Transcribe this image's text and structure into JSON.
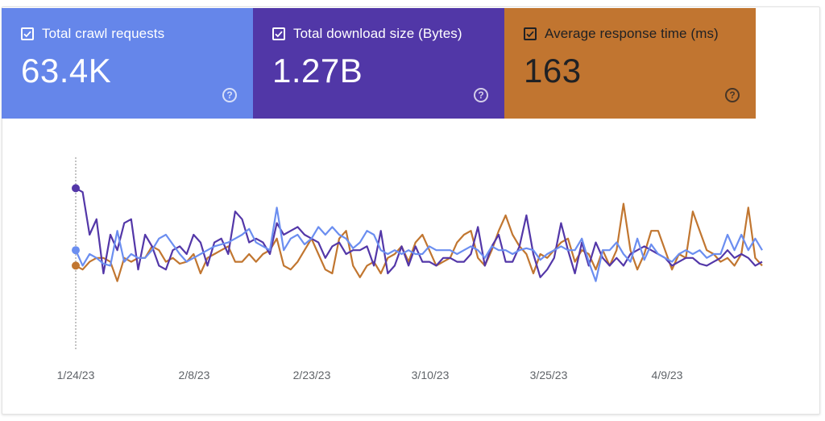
{
  "metrics": [
    {
      "label": "Total crawl requests",
      "value": "63.4K",
      "color": "#6586ea",
      "text_color": "#ffffff",
      "help_icon": "help-circle-icon"
    },
    {
      "label": "Total download size (Bytes)",
      "value": "1.27B",
      "color": "#5137a7",
      "text_color": "#ffffff",
      "help_icon": "help-circle-icon"
    },
    {
      "label": "Average response time (ms)",
      "value": "163",
      "color": "#c17530",
      "text_color": "#202124",
      "help_icon": "help-circle-icon"
    }
  ],
  "chart_data": {
    "type": "line",
    "x_axis": {
      "ticks": [
        "1/24/23",
        "2/8/23",
        "2/23/23",
        "3/10/23",
        "3/25/23",
        "4/9/23"
      ]
    },
    "y_axis": {
      "visible": false,
      "ylim": [
        0,
        100
      ]
    },
    "grid": false,
    "legend": "top (metric cards)",
    "series": [
      {
        "name": "Total crawl requests",
        "color": "#6b8ef0",
        "values": [
          52,
          44,
          50,
          48,
          45,
          44,
          62,
          46,
          50,
          48,
          48,
          52,
          58,
          60,
          55,
          50,
          46,
          48,
          50,
          52,
          54,
          55,
          56,
          58,
          60,
          63,
          56,
          54,
          52,
          74,
          52,
          58,
          60,
          55,
          58,
          64,
          60,
          64,
          60,
          58,
          53,
          56,
          62,
          60,
          52,
          50,
          52,
          50,
          52,
          50,
          50,
          54,
          52,
          52,
          52,
          50,
          52,
          54,
          52,
          48,
          54,
          52,
          52,
          50,
          52,
          53,
          52,
          47,
          50,
          52,
          54,
          52,
          52,
          58,
          46,
          36,
          52,
          52,
          56,
          50,
          46,
          58,
          47,
          55,
          50,
          48,
          46,
          50,
          52,
          50,
          52,
          48,
          50,
          50,
          60,
          52,
          60,
          52,
          58,
          52
        ]
      },
      {
        "name": "Total download size (Bytes)",
        "color": "#5337a8",
        "values": [
          84,
          82,
          60,
          68,
          40,
          60,
          52,
          66,
          68,
          42,
          60,
          54,
          44,
          42,
          52,
          54,
          50,
          60,
          56,
          44,
          56,
          58,
          50,
          72,
          68,
          56,
          58,
          56,
          50,
          66,
          60,
          62,
          64,
          60,
          58,
          56,
          48,
          54,
          56,
          50,
          52,
          52,
          54,
          44,
          62,
          40,
          44,
          54,
          44,
          54,
          46,
          46,
          44,
          48,
          48,
          46,
          46,
          50,
          64,
          44,
          54,
          60,
          46,
          46,
          54,
          70,
          50,
          38,
          42,
          48,
          66,
          52,
          40,
          56,
          44,
          56,
          48,
          44,
          48,
          44,
          50,
          52,
          54,
          52,
          50,
          48,
          44,
          46,
          48,
          48,
          45,
          44,
          46,
          48,
          52,
          48,
          50,
          48,
          44,
          46
        ]
      },
      {
        "name": "Average response time (ms)",
        "color": "#c17630",
        "values": [
          44,
          42,
          46,
          48,
          48,
          46,
          36,
          48,
          46,
          48,
          48,
          54,
          52,
          46,
          48,
          45,
          46,
          50,
          40,
          48,
          50,
          52,
          54,
          46,
          46,
          50,
          46,
          50,
          52,
          58,
          44,
          42,
          46,
          52,
          58,
          50,
          42,
          40,
          58,
          62,
          44,
          38,
          44,
          46,
          40,
          48,
          50,
          54,
          46,
          56,
          60,
          52,
          44,
          46,
          48,
          56,
          60,
          62,
          48,
          44,
          52,
          62,
          70,
          60,
          54,
          50,
          40,
          50,
          48,
          52,
          56,
          58,
          46,
          52,
          50,
          42,
          52,
          44,
          52,
          76,
          52,
          42,
          50,
          62,
          62,
          52,
          42,
          50,
          48,
          72,
          62,
          52,
          50,
          46,
          48,
          44,
          50,
          74,
          48,
          44
        ]
      }
    ]
  }
}
